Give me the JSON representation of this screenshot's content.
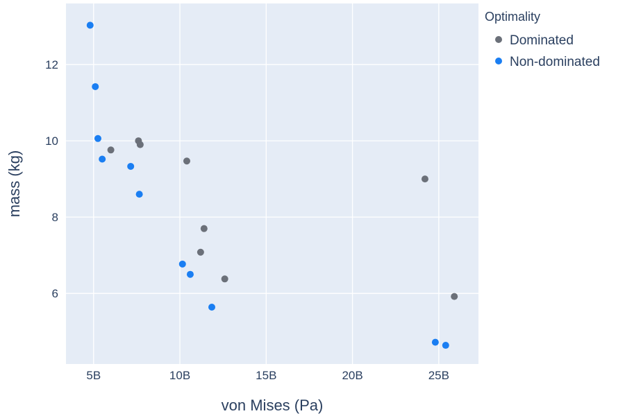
{
  "chart_data": {
    "type": "scatter",
    "xlabel": "von Mises (Pa)",
    "ylabel": "mass (kg)",
    "xlim": [
      3400000000,
      27300000000
    ],
    "ylim": [
      4.15,
      13.6
    ],
    "x_ticks": [
      {
        "value": 5000000000,
        "label": "5B"
      },
      {
        "value": 10000000000,
        "label": "10B"
      },
      {
        "value": 15000000000,
        "label": "15B"
      },
      {
        "value": 20000000000,
        "label": "20B"
      },
      {
        "value": 25000000000,
        "label": "25B"
      }
    ],
    "y_ticks": [
      {
        "value": 6,
        "label": "6"
      },
      {
        "value": 8,
        "label": "8"
      },
      {
        "value": 10,
        "label": "10"
      },
      {
        "value": 12,
        "label": "12"
      }
    ],
    "grid": true,
    "legend": {
      "title": "Optimality",
      "position": "right"
    },
    "series": [
      {
        "name": "Dominated",
        "color": "#6b7079",
        "points": [
          {
            "x": 6000000000,
            "y": 9.76
          },
          {
            "x": 7600000000,
            "y": 10.0
          },
          {
            "x": 7700000000,
            "y": 9.9
          },
          {
            "x": 10400000000,
            "y": 9.47
          },
          {
            "x": 11400000000,
            "y": 7.7
          },
          {
            "x": 11200000000,
            "y": 7.08
          },
          {
            "x": 12600000000,
            "y": 6.38
          },
          {
            "x": 24200000000,
            "y": 9.0
          },
          {
            "x": 25900000000,
            "y": 5.92
          }
        ]
      },
      {
        "name": "Non-dominated",
        "color": "#1a7ef2",
        "points": [
          {
            "x": 4800000000,
            "y": 13.03
          },
          {
            "x": 5100000000,
            "y": 11.42
          },
          {
            "x": 5250000000,
            "y": 10.06
          },
          {
            "x": 5500000000,
            "y": 9.52
          },
          {
            "x": 7150000000,
            "y": 9.33
          },
          {
            "x": 7650000000,
            "y": 8.6
          },
          {
            "x": 10150000000,
            "y": 6.77
          },
          {
            "x": 10600000000,
            "y": 6.5
          },
          {
            "x": 11850000000,
            "y": 5.64
          },
          {
            "x": 24800000000,
            "y": 4.72
          },
          {
            "x": 25400000000,
            "y": 4.64
          }
        ]
      }
    ]
  },
  "style": {
    "plot_background": "#e5ecf6",
    "grid_color": "#ffffff"
  }
}
